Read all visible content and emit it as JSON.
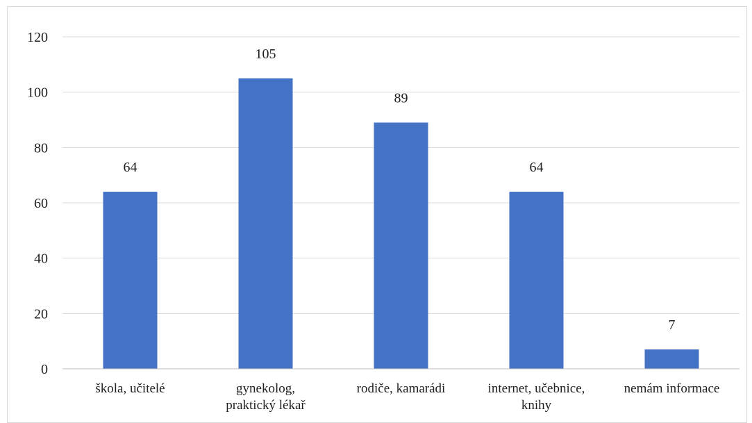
{
  "chart_data": {
    "type": "bar",
    "categories": [
      [
        "škola, učitelé"
      ],
      [
        "gynekolog,",
        "praktický lékař"
      ],
      [
        "rodiče, kamarádi"
      ],
      [
        "internet, učebnice,",
        "knihy"
      ],
      [
        "nemám informace"
      ]
    ],
    "values": [
      64,
      105,
      89,
      64,
      7
    ],
    "data_labels": [
      "64",
      "105",
      "89",
      "64",
      "7"
    ],
    "ylim": [
      0,
      120
    ],
    "yticks": [
      0,
      20,
      40,
      60,
      80,
      100,
      120
    ],
    "ytick_labels": [
      "0",
      "20",
      "40",
      "60",
      "80",
      "100",
      "120"
    ],
    "grid": true,
    "legend": "none",
    "colors": {
      "bar": "#4472c4",
      "grid": "#d9d9d9",
      "axis": "#bfbfbf",
      "text": "#1f1f1f"
    }
  }
}
